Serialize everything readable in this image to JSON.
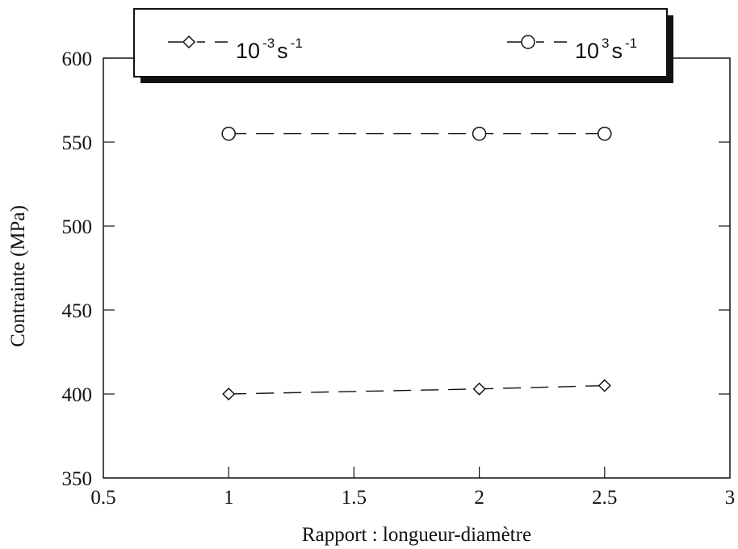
{
  "chart_data": {
    "type": "line",
    "title": "",
    "xlabel": "Rapport : longueur-diamètre",
    "ylabel": "Contrainte (MPa)",
    "xlim": [
      0.5,
      3
    ],
    "ylim": [
      350,
      600
    ],
    "xticks": [
      0.5,
      1,
      1.5,
      2,
      2.5,
      3
    ],
    "yticks": [
      350,
      400,
      450,
      500,
      550,
      600
    ],
    "xtick_labels": [
      "0.5",
      "1",
      "1.5",
      "2",
      "2.5",
      "3"
    ],
    "ytick_labels": [
      "350",
      "400",
      "450",
      "500",
      "550",
      "600"
    ],
    "grid": false,
    "legend_position": "top",
    "series": [
      {
        "name": "10 -3 s -1",
        "label_base": "10",
        "label_exp": "-3",
        "label_unit": "s",
        "label_unit_exp": "-1",
        "marker": "diamond",
        "line_style": "dashed",
        "x": [
          1,
          2,
          2.5
        ],
        "y": [
          400,
          403,
          405
        ]
      },
      {
        "name": "10 3 s -1",
        "label_base": "10",
        "label_exp": "3",
        "label_unit": "s",
        "label_unit_exp": "-1",
        "marker": "circle",
        "line_style": "dashed",
        "x": [
          1,
          2,
          2.5
        ],
        "y": [
          555,
          555,
          555
        ]
      }
    ]
  }
}
